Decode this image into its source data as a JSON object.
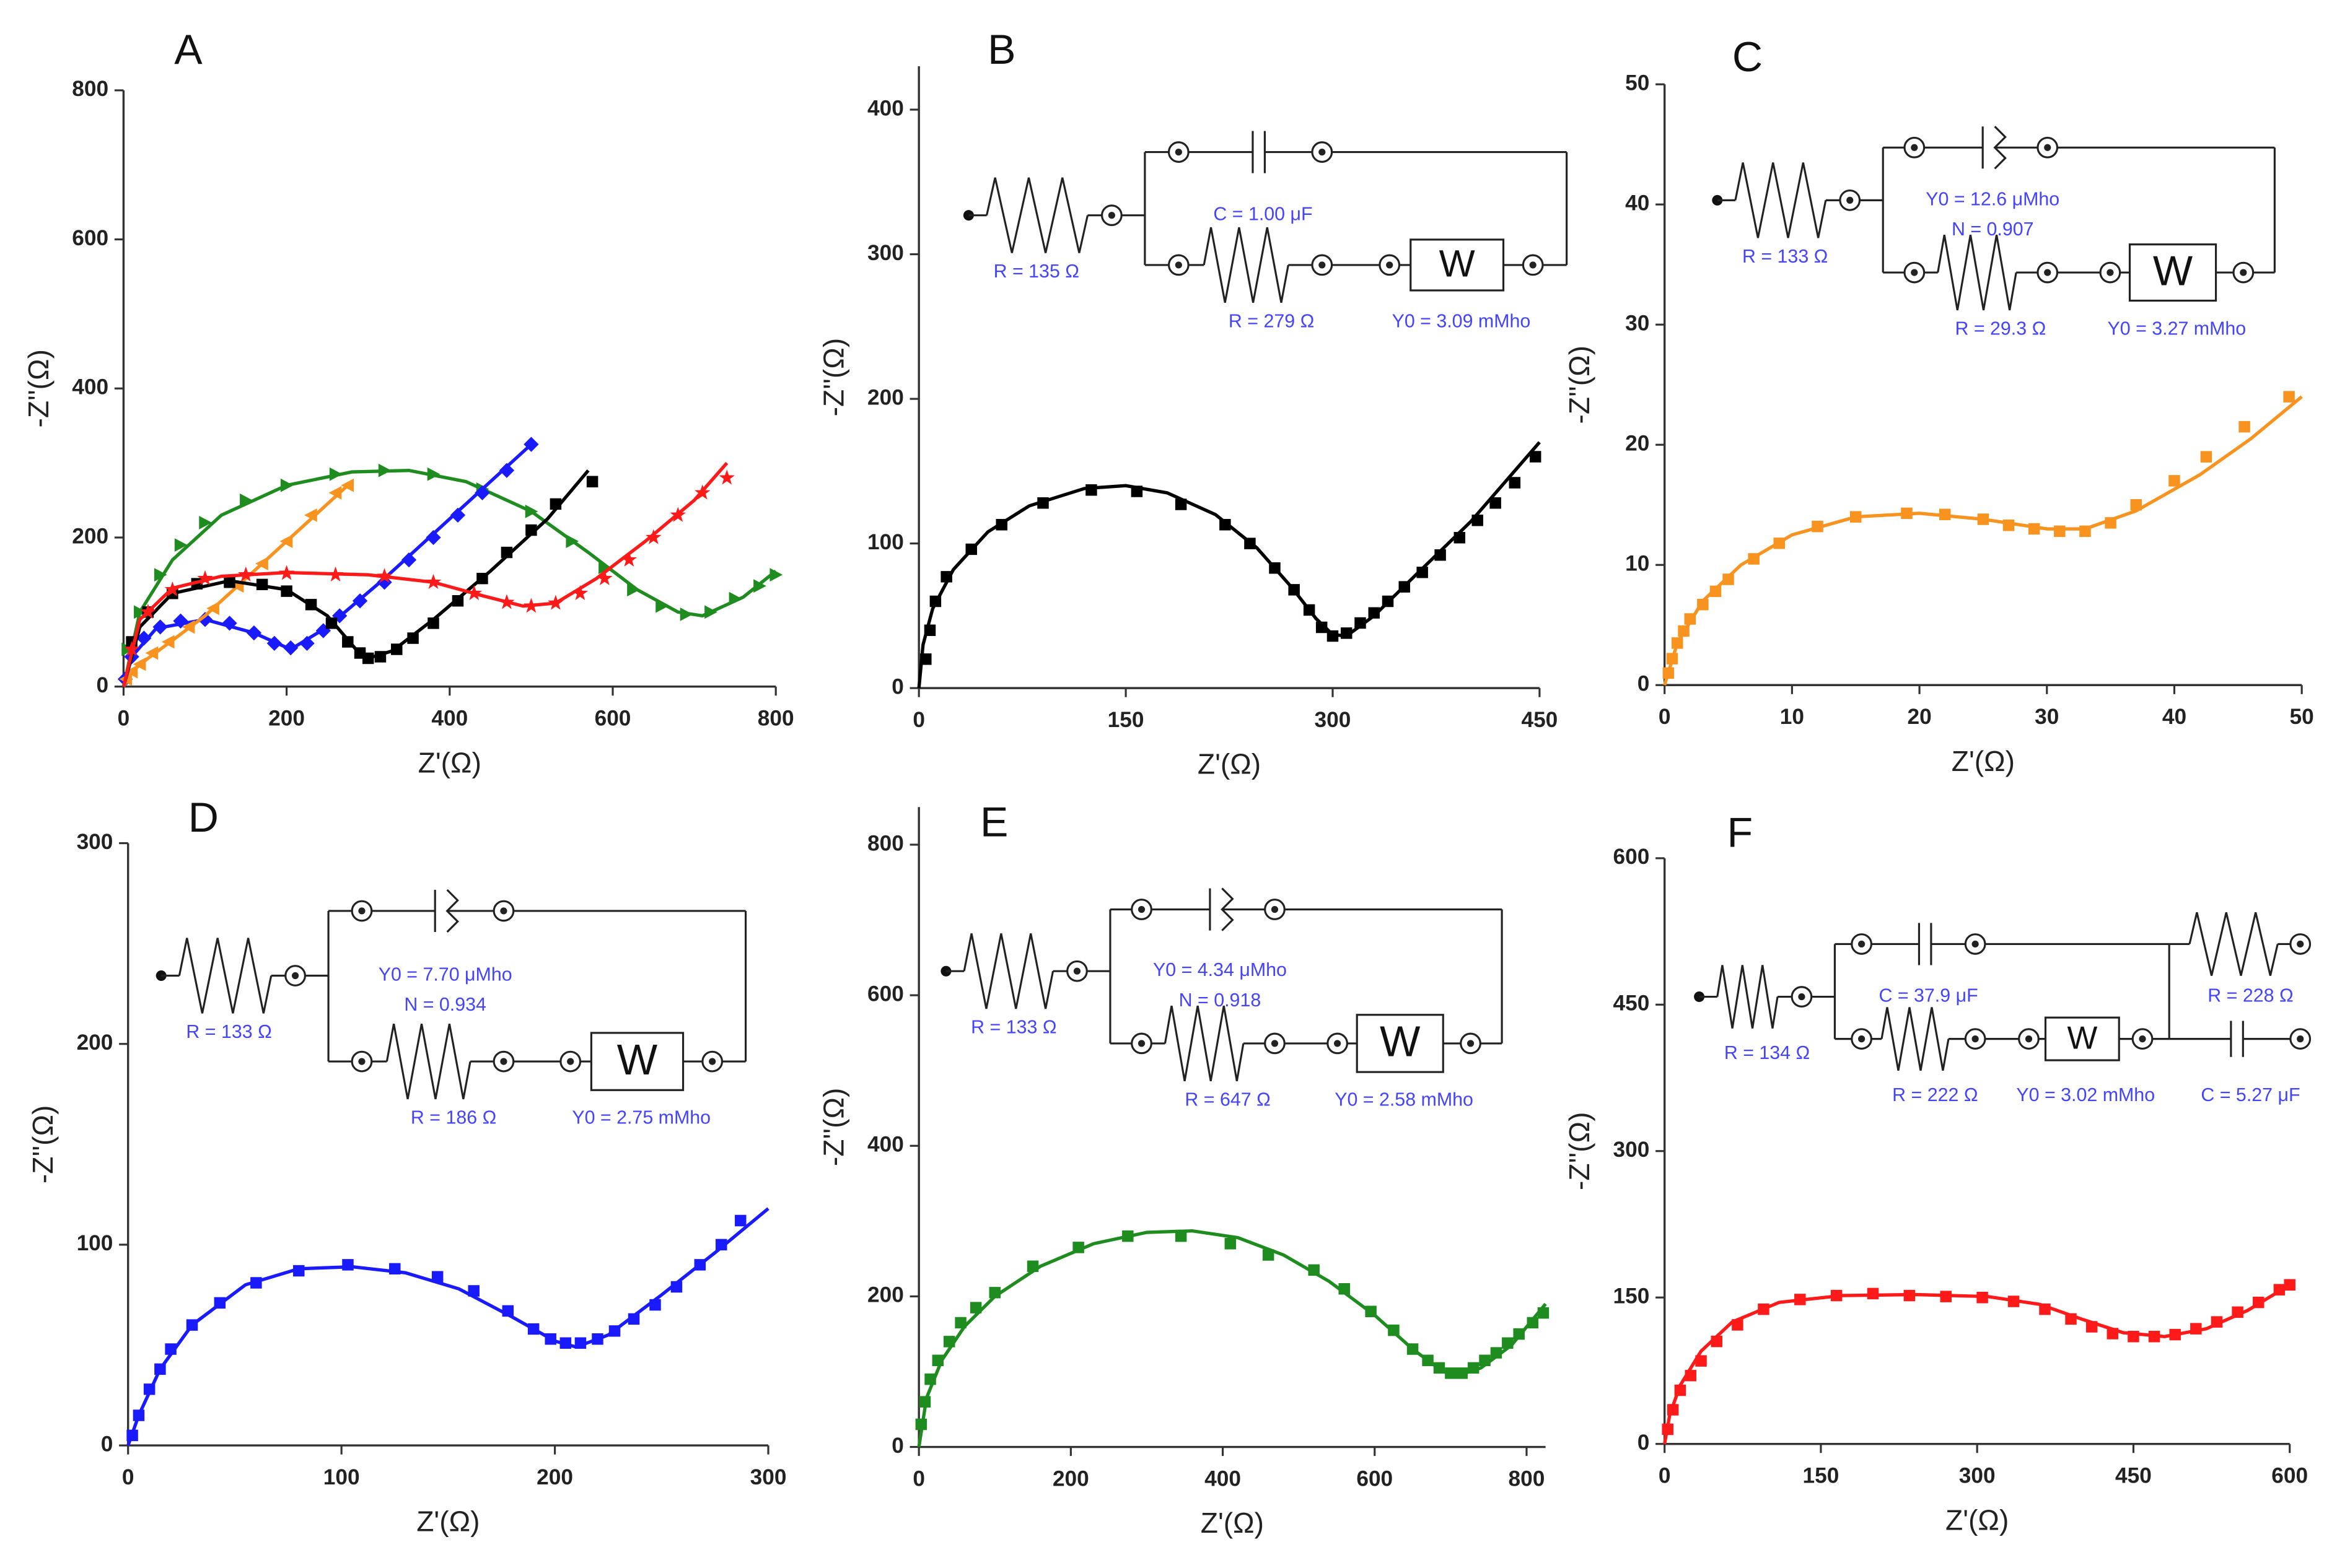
{
  "chart_data": [
    {
      "type": "scatter",
      "panel_label": "A",
      "x_label": "Z'(Ω)",
      "y_label": "-Z''(Ω)",
      "xlim": [
        0,
        800
      ],
      "ylim": [
        0,
        800
      ],
      "xticks": [
        0,
        200,
        400,
        600,
        800
      ],
      "yticks": [
        0,
        200,
        400,
        600,
        800
      ],
      "series": [
        {
          "color": "#1e8c1e",
          "style": "line",
          "x": [
            0,
            20,
            60,
            120,
            200,
            280,
            350,
            420,
            500,
            570,
            630,
            680,
            710,
            760,
            800
          ],
          "values": [
            0,
            100,
            170,
            230,
            270,
            288,
            290,
            275,
            235,
            180,
            130,
            100,
            95,
            120,
            155
          ]
        },
        {
          "color": "#1e8c1e",
          "marker": "triangle-right",
          "x": [
            5,
            20,
            45,
            70,
            100,
            150,
            200,
            260,
            320,
            380,
            440,
            500,
            550,
            590,
            625,
            660,
            690,
            720,
            750,
            780,
            800
          ],
          "values": [
            50,
            100,
            150,
            190,
            220,
            250,
            270,
            285,
            290,
            285,
            265,
            235,
            195,
            160,
            130,
            108,
            97,
            100,
            118,
            135,
            150
          ]
        },
        {
          "color": "#1a1aff",
          "style": "line",
          "x": [
            0,
            10,
            40,
            100,
            160,
            205,
            250,
            320,
            400,
            500
          ],
          "values": [
            0,
            40,
            78,
            90,
            72,
            50,
            80,
            145,
            225,
            325
          ]
        },
        {
          "color": "#1a1aff",
          "marker": "diamond",
          "x": [
            2,
            10,
            25,
            45,
            70,
            100,
            130,
            160,
            185,
            205,
            225,
            245,
            265,
            290,
            320,
            350,
            380,
            410,
            440,
            470,
            500
          ],
          "values": [
            10,
            40,
            65,
            80,
            88,
            90,
            85,
            72,
            58,
            52,
            58,
            75,
            95,
            115,
            140,
            170,
            200,
            230,
            260,
            290,
            325
          ]
        },
        {
          "color": "#f7931e",
          "style": "line",
          "x": [
            0,
            10,
            30,
            60,
            100,
            150,
            200,
            250,
            280
          ],
          "values": [
            0,
            20,
            38,
            62,
            95,
            145,
            195,
            245,
            275
          ]
        },
        {
          "color": "#f7931e",
          "marker": "triangle-left",
          "x": [
            3,
            10,
            20,
            35,
            55,
            80,
            110,
            140,
            170,
            200,
            230,
            260,
            275
          ],
          "values": [
            10,
            20,
            30,
            45,
            60,
            80,
            105,
            135,
            165,
            195,
            230,
            260,
            270
          ]
        },
        {
          "color": "#000000",
          "style": "line",
          "x": [
            0,
            20,
            60,
            130,
            200,
            250,
            285,
            300,
            330,
            380,
            450,
            520,
            570
          ],
          "values": [
            0,
            80,
            125,
            142,
            130,
            95,
            50,
            38,
            48,
            90,
            155,
            225,
            290
          ]
        },
        {
          "color": "#000000",
          "marker": "square",
          "x": [
            10,
            30,
            60,
            90,
            130,
            170,
            200,
            230,
            255,
            275,
            290,
            300,
            315,
            335,
            355,
            380,
            410,
            440,
            470,
            500,
            530,
            575
          ],
          "values": [
            60,
            100,
            125,
            138,
            140,
            137,
            128,
            110,
            85,
            60,
            45,
            38,
            40,
            50,
            65,
            85,
            115,
            145,
            180,
            210,
            245,
            275
          ]
        },
        {
          "color": "#ff1a1a",
          "style": "line",
          "x": [
            0,
            20,
            60,
            120,
            200,
            300,
            380,
            440,
            490,
            530,
            580,
            640,
            700,
            740
          ],
          "values": [
            0,
            90,
            132,
            148,
            153,
            150,
            140,
            122,
            108,
            112,
            145,
            195,
            250,
            300
          ]
        },
        {
          "color": "#ff1a1a",
          "marker": "star",
          "x": [
            10,
            30,
            60,
            100,
            150,
            200,
            260,
            320,
            380,
            430,
            470,
            500,
            530,
            560,
            590,
            620,
            650,
            680,
            710,
            740
          ],
          "values": [
            50,
            100,
            130,
            145,
            150,
            152,
            150,
            148,
            140,
            125,
            113,
            108,
            112,
            125,
            145,
            170,
            200,
            230,
            260,
            280
          ]
        }
      ]
    },
    {
      "type": "scatter",
      "panel_label": "B",
      "x_label": "Z'(Ω)",
      "y_label": "-Z''(Ω)",
      "xlim": [
        0,
        450
      ],
      "ylim": [
        0,
        430
      ],
      "xticks": [
        0,
        150,
        300,
        450
      ],
      "yticks": [
        0,
        100,
        200,
        300,
        400
      ],
      "series": [
        {
          "color": "#000000",
          "style": "line",
          "x": [
            0,
            3,
            10,
            25,
            50,
            80,
            120,
            150,
            180,
            215,
            245,
            270,
            288,
            300,
            310,
            330,
            360,
            400,
            450
          ],
          "values": [
            0,
            30,
            55,
            82,
            108,
            126,
            138,
            140,
            135,
            120,
            97,
            70,
            48,
            37,
            36,
            50,
            78,
            115,
            170
          ]
        },
        {
          "color": "#000000",
          "marker": "square",
          "x": [
            5,
            8,
            12,
            20,
            38,
            60,
            90,
            125,
            158,
            190,
            222,
            240,
            258,
            272,
            283,
            292,
            300,
            310,
            320,
            330,
            340,
            352,
            365,
            378,
            392,
            405,
            418,
            432,
            447
          ],
          "values": [
            20,
            40,
            60,
            77,
            96,
            113,
            128,
            137,
            136,
            127,
            113,
            100,
            83,
            68,
            54,
            42,
            36,
            38,
            45,
            52,
            60,
            70,
            80,
            92,
            104,
            116,
            128,
            142,
            160
          ]
        }
      ],
      "circuit": {
        "kind": "cap",
        "r_s": "R = 135 Ω",
        "el1": "C = 1.00 μF",
        "r_ct": "R = 279 Ω",
        "w_y0": "Y0 = 3.09 mMho",
        "w": "W"
      }
    },
    {
      "type": "scatter",
      "panel_label": "C",
      "x_label": "Z'(Ω)",
      "y_label": "-Z''(Ω)",
      "xlim": [
        0,
        50
      ],
      "ylim": [
        0,
        50
      ],
      "xticks": [
        0,
        10,
        20,
        30,
        40,
        50
      ],
      "yticks": [
        0,
        10,
        20,
        30,
        40,
        50
      ],
      "series": [
        {
          "color": "#f7931e",
          "style": "line",
          "x": [
            0,
            1,
            3,
            6,
            10,
            15,
            20,
            25,
            30,
            33,
            37,
            42,
            46,
            50
          ],
          "values": [
            0,
            3.5,
            7,
            10,
            12.5,
            14,
            14.3,
            13.8,
            13,
            13,
            14.5,
            17.5,
            20.5,
            24
          ]
        },
        {
          "color": "#f7931e",
          "marker": "square",
          "x": [
            0.3,
            0.6,
            1,
            1.5,
            2,
            3,
            4,
            5,
            7,
            9,
            12,
            15,
            19,
            22,
            25,
            27,
            29,
            31,
            33,
            35,
            37,
            40,
            42.5,
            45.5,
            49
          ],
          "values": [
            1,
            2.2,
            3.5,
            4.5,
            5.5,
            6.7,
            7.8,
            8.8,
            10.5,
            11.8,
            13.2,
            14,
            14.3,
            14.2,
            13.8,
            13.3,
            13,
            12.8,
            12.8,
            13.5,
            15,
            17,
            19,
            21.5,
            24
          ]
        }
      ],
      "circuit": {
        "kind": "cpe",
        "r_s": "R = 133 Ω",
        "el1": "Y0 = 12.6 μMho",
        "n": "N = 0.907",
        "r_ct": "R = 29.3 Ω",
        "w_y0": "Y0 = 3.27 mMho",
        "w": "W"
      }
    },
    {
      "type": "scatter",
      "panel_label": "D",
      "x_label": "Z'(Ω)",
      "y_label": "-Z''(Ω)",
      "xlim": [
        0,
        300
      ],
      "ylim": [
        0,
        300
      ],
      "xticks": [
        0,
        100,
        200,
        300
      ],
      "yticks": [
        0,
        100,
        200,
        300
      ],
      "series": [
        {
          "color": "#1a1aff",
          "style": "line",
          "x": [
            0,
            5,
            15,
            30,
            55,
            80,
            105,
            130,
            155,
            180,
            200,
            210,
            225,
            250,
            275,
            300
          ],
          "values": [
            0,
            15,
            38,
            60,
            80,
            88,
            89,
            86,
            78,
            64,
            52,
            49,
            55,
            75,
            96,
            118
          ]
        },
        {
          "color": "#1a1aff",
          "marker": "square",
          "x": [
            2,
            5,
            10,
            15,
            20,
            30,
            43,
            60,
            80,
            103,
            125,
            145,
            162,
            178,
            190,
            198,
            205,
            212,
            220,
            228,
            237,
            247,
            257,
            268,
            278,
            287
          ],
          "values": [
            5,
            15,
            28,
            38,
            48,
            60,
            71,
            81,
            87,
            90,
            88,
            84,
            77,
            67,
            58,
            53,
            51,
            51,
            53,
            57,
            63,
            70,
            79,
            90,
            100,
            112
          ]
        }
      ],
      "circuit": {
        "kind": "cpe",
        "r_s": "R = 133 Ω",
        "el1": "Y0 = 7.70 μMho",
        "n": "N = 0.934",
        "r_ct": "R = 186 Ω",
        "w_y0": "Y0 = 2.75 mMho",
        "w": "W"
      }
    },
    {
      "type": "scatter",
      "panel_label": "E",
      "x_label": "Z'(Ω)",
      "y_label": "-Z''(Ω)",
      "xlim": [
        0,
        825
      ],
      "ylim": [
        0,
        850
      ],
      "xticks": [
        0,
        200,
        400,
        600,
        800
      ],
      "yticks": [
        0,
        200,
        400,
        600,
        800
      ],
      "series": [
        {
          "color": "#1e8c1e",
          "style": "line",
          "x": [
            0,
            10,
            30,
            60,
            100,
            160,
            230,
            300,
            360,
            420,
            480,
            540,
            600,
            650,
            690,
            710,
            740,
            780,
            825
          ],
          "values": [
            0,
            65,
            115,
            160,
            200,
            240,
            270,
            285,
            287,
            278,
            255,
            220,
            175,
            130,
            100,
            95,
            105,
            135,
            190
          ]
        },
        {
          "color": "#1e8c1e",
          "marker": "square",
          "x": [
            3,
            8,
            15,
            25,
            40,
            55,
            75,
            100,
            150,
            210,
            275,
            345,
            410,
            460,
            520,
            560,
            595,
            625,
            650,
            670,
            685,
            700,
            715,
            730,
            745,
            760,
            775,
            790,
            808,
            822
          ],
          "values": [
            30,
            60,
            90,
            115,
            140,
            165,
            185,
            205,
            240,
            265,
            280,
            280,
            270,
            255,
            235,
            210,
            180,
            155,
            130,
            115,
            105,
            98,
            98,
            105,
            115,
            125,
            138,
            150,
            165,
            178
          ]
        }
      ],
      "circuit": {
        "kind": "cpe",
        "r_s": "R = 133 Ω",
        "el1": "Y0 = 4.34 μMho",
        "n": "N = 0.918",
        "r_ct": "R = 647 Ω",
        "w_y0": "Y0 = 2.58 mMho",
        "w": "W"
      }
    },
    {
      "type": "scatter",
      "panel_label": "F",
      "x_label": "Z'(Ω)",
      "y_label": "-Z''(Ω)",
      "xlim": [
        0,
        600
      ],
      "ylim": [
        0,
        600
      ],
      "xticks": [
        0,
        150,
        300,
        450,
        600
      ],
      "yticks": [
        0,
        150,
        300,
        450,
        600
      ],
      "series": [
        {
          "color": "#ff1a1a",
          "style": "line",
          "x": [
            0,
            5,
            15,
            35,
            65,
            110,
            170,
            240,
            310,
            360,
            400,
            440,
            480,
            520,
            560,
            600
          ],
          "values": [
            0,
            30,
            60,
            95,
            125,
            145,
            152,
            153,
            151,
            143,
            128,
            114,
            110,
            118,
            137,
            163
          ]
        },
        {
          "color": "#ff1a1a",
          "marker": "square",
          "x": [
            3,
            8,
            15,
            25,
            35,
            50,
            70,
            95,
            130,
            165,
            200,
            235,
            270,
            305,
            335,
            365,
            390,
            410,
            430,
            450,
            470,
            490,
            510,
            530,
            550,
            570,
            590,
            600
          ],
          "values": [
            15,
            35,
            55,
            70,
            85,
            105,
            122,
            138,
            148,
            152,
            154,
            152,
            151,
            150,
            146,
            138,
            128,
            120,
            113,
            110,
            110,
            112,
            118,
            125,
            135,
            145,
            158,
            163
          ]
        }
      ],
      "circuit": {
        "kind": "double",
        "r_s": "R = 134 Ω",
        "el1": "C = 37.9 μF",
        "r_ct": "R = 222 Ω",
        "w_y0": "Y0 = 3.02 mMho",
        "r2": "R = 228 Ω",
        "c2": "C = 5.27 μF",
        "w": "W"
      }
    }
  ]
}
